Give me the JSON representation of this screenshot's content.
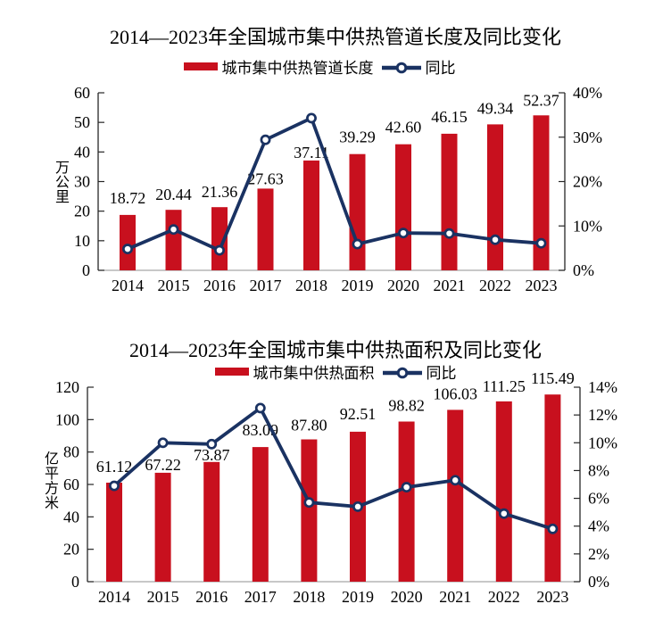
{
  "chart_data": [
    {
      "type": "bar+line",
      "title": "2014—2023年全国城市集中供热管道长度及同比变化",
      "categories": [
        "2014",
        "2015",
        "2016",
        "2017",
        "2018",
        "2019",
        "2020",
        "2021",
        "2022",
        "2023"
      ],
      "series": [
        {
          "name": "城市集中供热管道长度",
          "type": "bar",
          "axis": "left",
          "color": "#c8101e",
          "values": [
            18.72,
            20.44,
            21.36,
            27.63,
            37.11,
            39.29,
            42.6,
            46.15,
            49.34,
            52.37
          ]
        },
        {
          "name": "同比",
          "type": "line",
          "axis": "right",
          "color": "#1a3262",
          "values_pct": [
            4.8,
            9.2,
            4.5,
            29.4,
            34.3,
            5.9,
            8.4,
            8.3,
            6.9,
            6.1
          ]
        }
      ],
      "left_axis": {
        "label": "万公里",
        "min": 0,
        "max": 60,
        "step": 10,
        "tick_labels": [
          "0",
          "10",
          "20",
          "30",
          "40",
          "50",
          "60"
        ]
      },
      "right_axis": {
        "min": 0,
        "max": 40,
        "step": 10,
        "tick_labels": [
          "0%",
          "10%",
          "20%",
          "30%",
          "40%"
        ]
      },
      "legend_position": "top",
      "grid": false
    },
    {
      "type": "bar+line",
      "title": "2014—2023年全国城市集中供热面积及同比变化",
      "categories": [
        "2014",
        "2015",
        "2016",
        "2017",
        "2018",
        "2019",
        "2020",
        "2021",
        "2022",
        "2023"
      ],
      "series": [
        {
          "name": "城市集中供热面积",
          "type": "bar",
          "axis": "left",
          "color": "#c8101e",
          "values": [
            61.12,
            67.22,
            73.87,
            83.09,
            87.8,
            92.51,
            98.82,
            106.03,
            111.25,
            115.49
          ]
        },
        {
          "name": "同比",
          "type": "line",
          "axis": "right",
          "color": "#1a3262",
          "values_pct": [
            6.9,
            10.0,
            9.9,
            12.5,
            5.7,
            5.4,
            6.8,
            7.3,
            4.9,
            3.8
          ]
        }
      ],
      "left_axis": {
        "label": "亿平方米",
        "min": 0,
        "max": 120,
        "step": 20,
        "tick_labels": [
          "0",
          "20",
          "40",
          "60",
          "80",
          "100",
          "120"
        ]
      },
      "right_axis": {
        "min": 0,
        "max": 14,
        "step": 2,
        "tick_labels": [
          "0%",
          "2%",
          "4%",
          "6%",
          "8%",
          "10%",
          "12%",
          "14%"
        ]
      },
      "legend_position": "top",
      "grid": false
    }
  ]
}
